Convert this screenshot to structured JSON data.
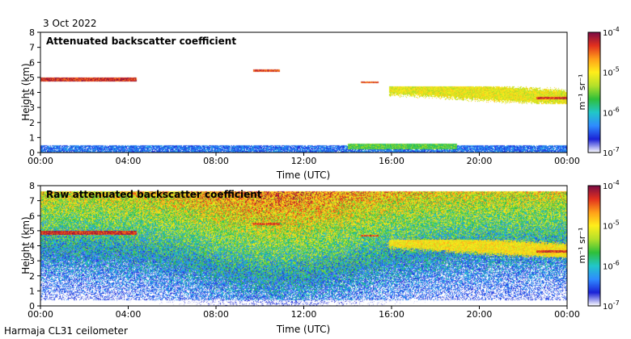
{
  "date": "3 Oct 2022",
  "footer": "Harmaja CL31 ceilometer",
  "colorbar": {
    "unit_html": "m⁻¹ sr⁻¹",
    "tick_labels": [
      "10-7",
      "10-6",
      "10-5",
      "10-4"
    ],
    "log_range": [
      -7,
      -4
    ],
    "colors": [
      "#ffffff",
      "#1b22d6",
      "#2e8bff",
      "#21c6c9",
      "#2fbf3a",
      "#b4e02a",
      "#ffee1a",
      "#ff9f19",
      "#e2301e",
      "#7a0b44"
    ]
  },
  "chart_data": [
    {
      "type": "heatmap",
      "title": "Attenuated backscatter coefficient",
      "xlabel": "Time (UTC)",
      "ylabel": "Height (km)",
      "xlim": [
        0,
        24
      ],
      "ylim": [
        0,
        8
      ],
      "x_tick_labels": [
        "00:00",
        "04:00",
        "08:00",
        "12:00",
        "16:00",
        "20:00",
        "00:00"
      ],
      "y_tick_labels": [
        "0",
        "1",
        "2",
        "3",
        "4",
        "5",
        "6",
        "7",
        "8"
      ],
      "features": [
        {
          "name": "surface aerosol layer",
          "time": [
            0,
            24
          ],
          "height": [
            0,
            0.5
          ],
          "level": -6.4
        },
        {
          "name": "elevated aerosol layer",
          "time": [
            14,
            19
          ],
          "height": [
            0.2,
            0.6
          ],
          "level": -5.6
        },
        {
          "name": "cloud layer",
          "time": [
            0,
            4.4
          ],
          "height": [
            4.75,
            5.0
          ],
          "level": -4.3
        },
        {
          "name": "cloud fragment",
          "time": [
            9.7,
            10.9
          ],
          "height": [
            5.35,
            5.55
          ],
          "level": -4.4
        },
        {
          "name": "cloud fragment",
          "time": [
            14.6,
            15.4
          ],
          "height": [
            4.6,
            4.75
          ],
          "level": -4.4
        },
        {
          "name": "cirrus layer",
          "time": [
            15.9,
            24
          ],
          "height": [
            3.2,
            4.4
          ],
          "level": -5.1
        },
        {
          "name": "cloud base",
          "time": [
            22.6,
            24
          ],
          "height": [
            3.55,
            3.7
          ],
          "level": -4.3
        }
      ]
    },
    {
      "type": "heatmap",
      "title": "Raw attenuated backscatter coefficient",
      "xlabel": "Time (UTC)",
      "ylabel": "Height (km)",
      "xlim": [
        0,
        24
      ],
      "ylim": [
        0,
        8
      ],
      "x_tick_labels": [
        "00:00",
        "04:00",
        "08:00",
        "12:00",
        "16:00",
        "20:00",
        "00:00"
      ],
      "y_tick_labels": [
        "0",
        "1",
        "2",
        "3",
        "4",
        "5",
        "6",
        "7",
        "8"
      ],
      "features": [
        {
          "name": "noisy background",
          "time": [
            0,
            24
          ],
          "height": [
            0,
            8
          ],
          "level": -6.0
        },
        {
          "name": "cloud layer",
          "time": [
            0,
            4.4
          ],
          "height": [
            4.75,
            5.0
          ],
          "level": -4.3
        },
        {
          "name": "cloud fragment",
          "time": [
            9.7,
            10.9
          ],
          "height": [
            5.35,
            5.55
          ],
          "level": -4.4
        },
        {
          "name": "cloud fragment",
          "time": [
            14.6,
            15.4
          ],
          "height": [
            4.6,
            4.75
          ],
          "level": -4.4
        },
        {
          "name": "cirrus layer",
          "time": [
            15.9,
            24
          ],
          "height": [
            3.2,
            4.4
          ],
          "level": -5.0
        },
        {
          "name": "cloud base",
          "time": [
            22.6,
            24
          ],
          "height": [
            3.55,
            3.7
          ],
          "level": -4.3
        }
      ]
    }
  ]
}
